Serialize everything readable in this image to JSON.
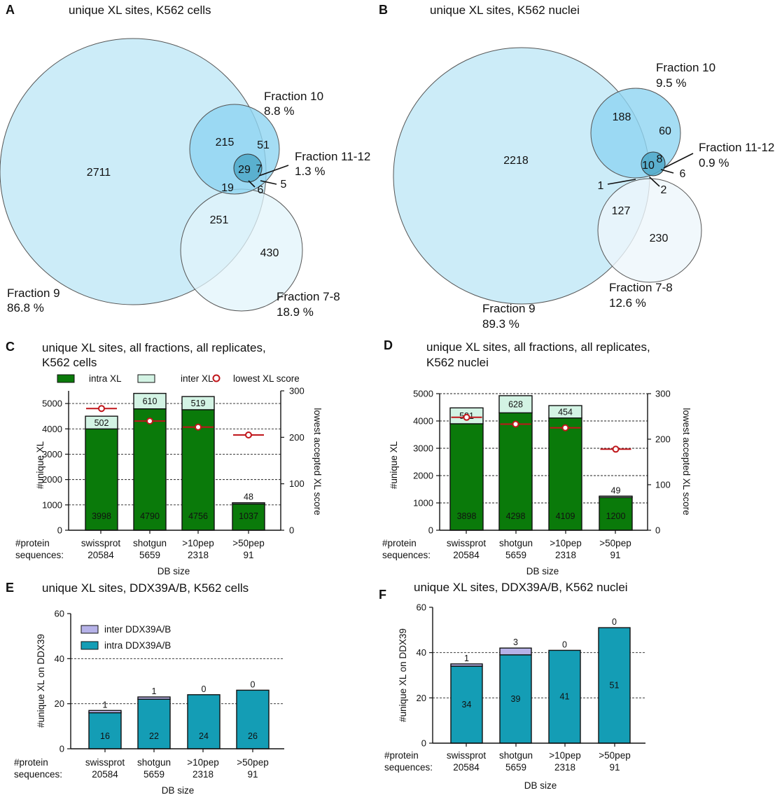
{
  "panels": {
    "A": {
      "letter": "A",
      "title": "unique XL sites, K562 cells"
    },
    "B": {
      "letter": "B",
      "title": "unique XL sites, K562 nuclei"
    },
    "C": {
      "letter": "C",
      "title_line1": "unique XL sites, all fractions, all replicates,",
      "title_line2": "K562 cells"
    },
    "D": {
      "letter": "D",
      "title_line1": "unique XL sites, all fractions, all replicates,",
      "title_line2": "K562 nuclei"
    },
    "E": {
      "letter": "E",
      "title": "unique XL sites, DDX39A/B, K562 cells"
    },
    "F": {
      "letter": "F",
      "title": "unique XL sites, DDX39A/B, K562 nuclei"
    }
  },
  "colors": {
    "fraction9": "#c9ebf8",
    "fraction10": "#8fd5f1",
    "fraction1112": "#4fa8c8",
    "fraction78_a": "#e2f4fb",
    "fraction78_b": "#eef6fb",
    "intra": "#0a7a0a",
    "inter": "#d3f3e4",
    "score": "#c0161b",
    "ddx_intra": "#149db5",
    "ddx_inter": "#b6b2e8"
  },
  "venn_a": {
    "fraction9_label": "Fraction 9",
    "fraction9_pct": "86.8 %",
    "fraction10_label": "Fraction 10",
    "fraction10_pct": "8.8 %",
    "fraction1112_label": "Fraction 11-12",
    "fraction1112_pct": "1.3 %",
    "fraction78_label": "Fraction 7-8",
    "fraction78_pct": "18.9 %",
    "n_only9": "2711",
    "n_only10": "215",
    "n_10_78": "51",
    "n_all": "29",
    "n_1112_9": "7",
    "n_9_10": "19",
    "n_9_78_1112": "6",
    "n_78_1112": "5",
    "n_9_78": "251",
    "n_only78": "430"
  },
  "venn_b": {
    "fraction9_label": "Fraction 9",
    "fraction9_pct": "89.3 %",
    "fraction10_label": "Fraction 10",
    "fraction10_pct": "9.5 %",
    "fraction1112_label": "Fraction 11-12",
    "fraction1112_pct": "0.9 %",
    "fraction78_label": "Fraction 7-8",
    "fraction78_pct": "12.6 %",
    "n_only9": "2218",
    "n_only10": "188",
    "n_10_side": "60",
    "n_all": "10",
    "n_1112_10": "8",
    "n_1112_only": "6",
    "n_9_78": "127",
    "n_only78": "230",
    "n_lead1": "1",
    "n_lead2": "2"
  },
  "legend_cd": {
    "intra": "intra XL",
    "inter": "inter XL",
    "score": "lowest XL score"
  },
  "legend_e": {
    "inter": "inter DDX39A/B",
    "intra": "intra DDX39A/B"
  },
  "shared": {
    "protein_line1": "#protein",
    "protein_line2": "sequences:",
    "db_size": "DB size",
    "ylabel_xl": "#unique XL",
    "ylabel_score": "lowest accepted XL score",
    "ylabel_ddx": "#unique XL on DDX39",
    "cats": [
      "swissprot",
      "shotgun",
      ">10pep",
      ">50pep"
    ],
    "counts": [
      "20584",
      "5659",
      "2318",
      "91"
    ]
  },
  "chart_data": [
    {
      "panel": "C",
      "type": "bar",
      "stacked": true,
      "title": "unique XL sites, all fractions, all replicates, K562 cells",
      "categories": [
        "swissprot 20584",
        "shotgun 5659",
        ">10pep 2318",
        ">50pep 91"
      ],
      "series": [
        {
          "name": "intra XL",
          "values": [
            3998,
            4790,
            4756,
            1037
          ]
        },
        {
          "name": "inter XL",
          "values": [
            502,
            610,
            519,
            48
          ]
        }
      ],
      "secondary": {
        "name": "lowest XL score",
        "values": [
          262,
          235,
          222,
          205
        ],
        "ylim": [
          0,
          300
        ],
        "yticks": [
          0,
          100,
          200,
          300
        ]
      },
      "ylabel": "#unique XL",
      "y2label": "lowest accepted XL score",
      "xlabel": "DB size",
      "ylim": [
        0,
        5500
      ],
      "yticks": [
        0,
        1000,
        2000,
        3000,
        4000,
        5000
      ],
      "grid": [
        1000,
        2000,
        3000,
        4000,
        5000
      ]
    },
    {
      "panel": "D",
      "type": "bar",
      "stacked": true,
      "title": "unique XL sites, all fractions, all replicates, K562 nuclei",
      "categories": [
        "swissprot 20584",
        "shotgun 5659",
        ">10pep 2318",
        ">50pep 91"
      ],
      "series": [
        {
          "name": "intra XL",
          "values": [
            3898,
            4298,
            4109,
            1200
          ]
        },
        {
          "name": "inter XL",
          "values": [
            581,
            628,
            454,
            49
          ]
        }
      ],
      "secondary": {
        "name": "lowest XL score",
        "values": [
          248,
          233,
          225,
          178
        ],
        "ylim": [
          0,
          300
        ],
        "yticks": [
          0,
          100,
          200,
          300
        ]
      },
      "ylabel": "#unique XL",
      "y2label": "lowest accepted XL score",
      "xlabel": "DB size",
      "ylim": [
        0,
        5000
      ],
      "yticks": [
        0,
        1000,
        2000,
        3000,
        4000,
        5000
      ],
      "grid": [
        1000,
        2000,
        3000,
        4000,
        5000
      ]
    },
    {
      "panel": "E",
      "type": "bar",
      "stacked": true,
      "title": "unique XL sites, DDX39A/B, K562 cells",
      "categories": [
        "swissprot 20584",
        "shotgun 5659",
        ">10pep 2318",
        ">50pep 91"
      ],
      "series": [
        {
          "name": "intra DDX39A/B",
          "values": [
            16,
            22,
            24,
            26
          ]
        },
        {
          "name": "inter DDX39A/B",
          "values": [
            1,
            1,
            0,
            0
          ]
        }
      ],
      "ylabel": "#unique XL on DDX39",
      "xlabel": "DB size",
      "ylim": [
        0,
        60
      ],
      "yticks": [
        0,
        20,
        40,
        60
      ],
      "grid": [
        20,
        40
      ]
    },
    {
      "panel": "F",
      "type": "bar",
      "stacked": true,
      "title": "unique XL sites, DDX39A/B, K562 nuclei",
      "categories": [
        "swissprot 20584",
        "shotgun 5659",
        ">10pep 2318",
        ">50pep 91"
      ],
      "series": [
        {
          "name": "intra DDX39A/B",
          "values": [
            34,
            39,
            41,
            51
          ]
        },
        {
          "name": "inter DDX39A/B",
          "values": [
            1,
            3,
            0,
            0
          ]
        }
      ],
      "ylabel": "#unique XL on DDX39",
      "xlabel": "DB size",
      "ylim": [
        0,
        60
      ],
      "yticks": [
        0,
        20,
        40,
        60
      ],
      "grid": [
        20,
        40
      ]
    }
  ]
}
